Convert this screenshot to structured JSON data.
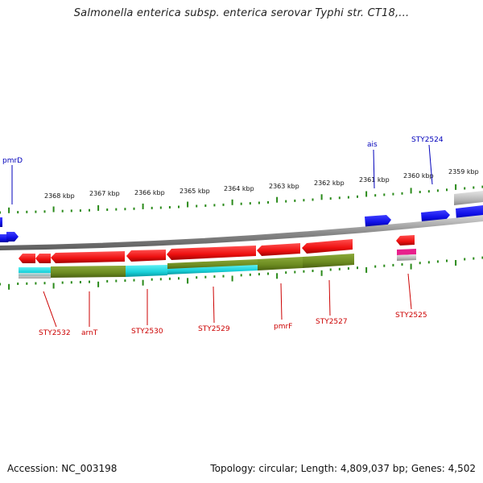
{
  "title": "Salmonella enterica subsp. enterica serovar Typhi str. CT18,...",
  "footer": {
    "accession": "Accession: NC_003198",
    "summary": "Topology: circular; Length: 4,809,037 bp; Genes: 4,502"
  },
  "colors": {
    "forward_cds": "#1010ee",
    "reverse_cds": "#ee1010",
    "backbone": "#888888",
    "tick": "#2a8a1a",
    "forward_label": "#0000bb",
    "reverse_label": "#cc0000",
    "feature_olive": "#6b8a20",
    "feature_cyan": "#18d0d8",
    "feature_gray": "#b8b8b8",
    "feature_pink": "#e8208c"
  },
  "kbp_labels": [
    "2368 kbp",
    "2367 kbp",
    "2366 kbp",
    "2365 kbp",
    "2364 kbp",
    "2363 kbp",
    "2362 kbp",
    "2361 kbp",
    "2360 kbp",
    "2359 kbp"
  ],
  "forward_gene_labels": [
    "pmrD",
    "ais",
    "STY2524"
  ],
  "reverse_gene_labels": [
    "STY2532",
    "arnT",
    "STY2530",
    "STY2529",
    "pmrF",
    "STY2527",
    "STY2525"
  ]
}
